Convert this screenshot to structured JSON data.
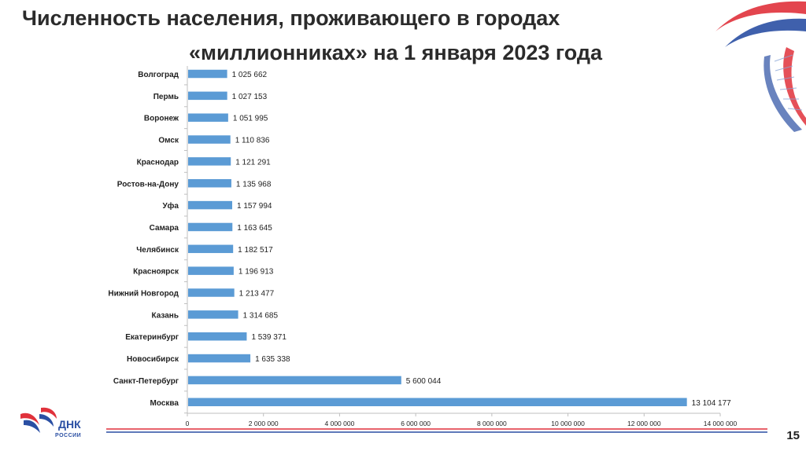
{
  "slide": {
    "title_line1": "Численность населения, проживающего в городах",
    "title_line2": "«миллионниках» на 1 января 2023 года",
    "page_number": "15",
    "logo_text": "ДНК",
    "logo_subtext": "РОССИИ"
  },
  "colors": {
    "bar": "#5b9bd5",
    "text": "#1f1f1f",
    "axis": "#bfbfbf",
    "ribbon_blue": "#2a4fa3",
    "ribbon_red": "#e0313b"
  },
  "chart_data": {
    "type": "bar",
    "orientation": "horizontal",
    "categories": [
      "Волгоград",
      "Пермь",
      "Воронеж",
      "Омск",
      "Краснодар",
      "Ростов-на-Дону",
      "Уфа",
      "Самара",
      "Челябинск",
      "Красноярск",
      "Нижний Новгород",
      "Казань",
      "Екатеринбург",
      "Новосибирск",
      "Санкт-Петербург",
      "Москва"
    ],
    "values": [
      1025662,
      1027153,
      1051995,
      1110836,
      1121291,
      1135968,
      1157994,
      1163645,
      1182517,
      1196913,
      1213477,
      1314685,
      1539371,
      1635338,
      5600044,
      13104177
    ],
    "value_labels": [
      "1 025 662",
      "1 027 153",
      "1 051 995",
      "1 110 836",
      "1 121 291",
      "1 135 968",
      "1 157 994",
      "1 163 645",
      "1 182 517",
      "1 196 913",
      "1 213 477",
      "1 314 685",
      "1 539 371",
      "1 635 338",
      "5 600 044",
      "13 104 177"
    ],
    "xticks": [
      0,
      2000000,
      4000000,
      6000000,
      8000000,
      10000000,
      12000000,
      14000000
    ],
    "xtick_labels": [
      "0",
      "2 000 000",
      "4 000 000",
      "6 000 000",
      "8 000 000",
      "10 000 000",
      "12 000 000",
      "14 000 000"
    ],
    "xlim": [
      0,
      14000000
    ],
    "grid": false,
    "legend": "none"
  }
}
